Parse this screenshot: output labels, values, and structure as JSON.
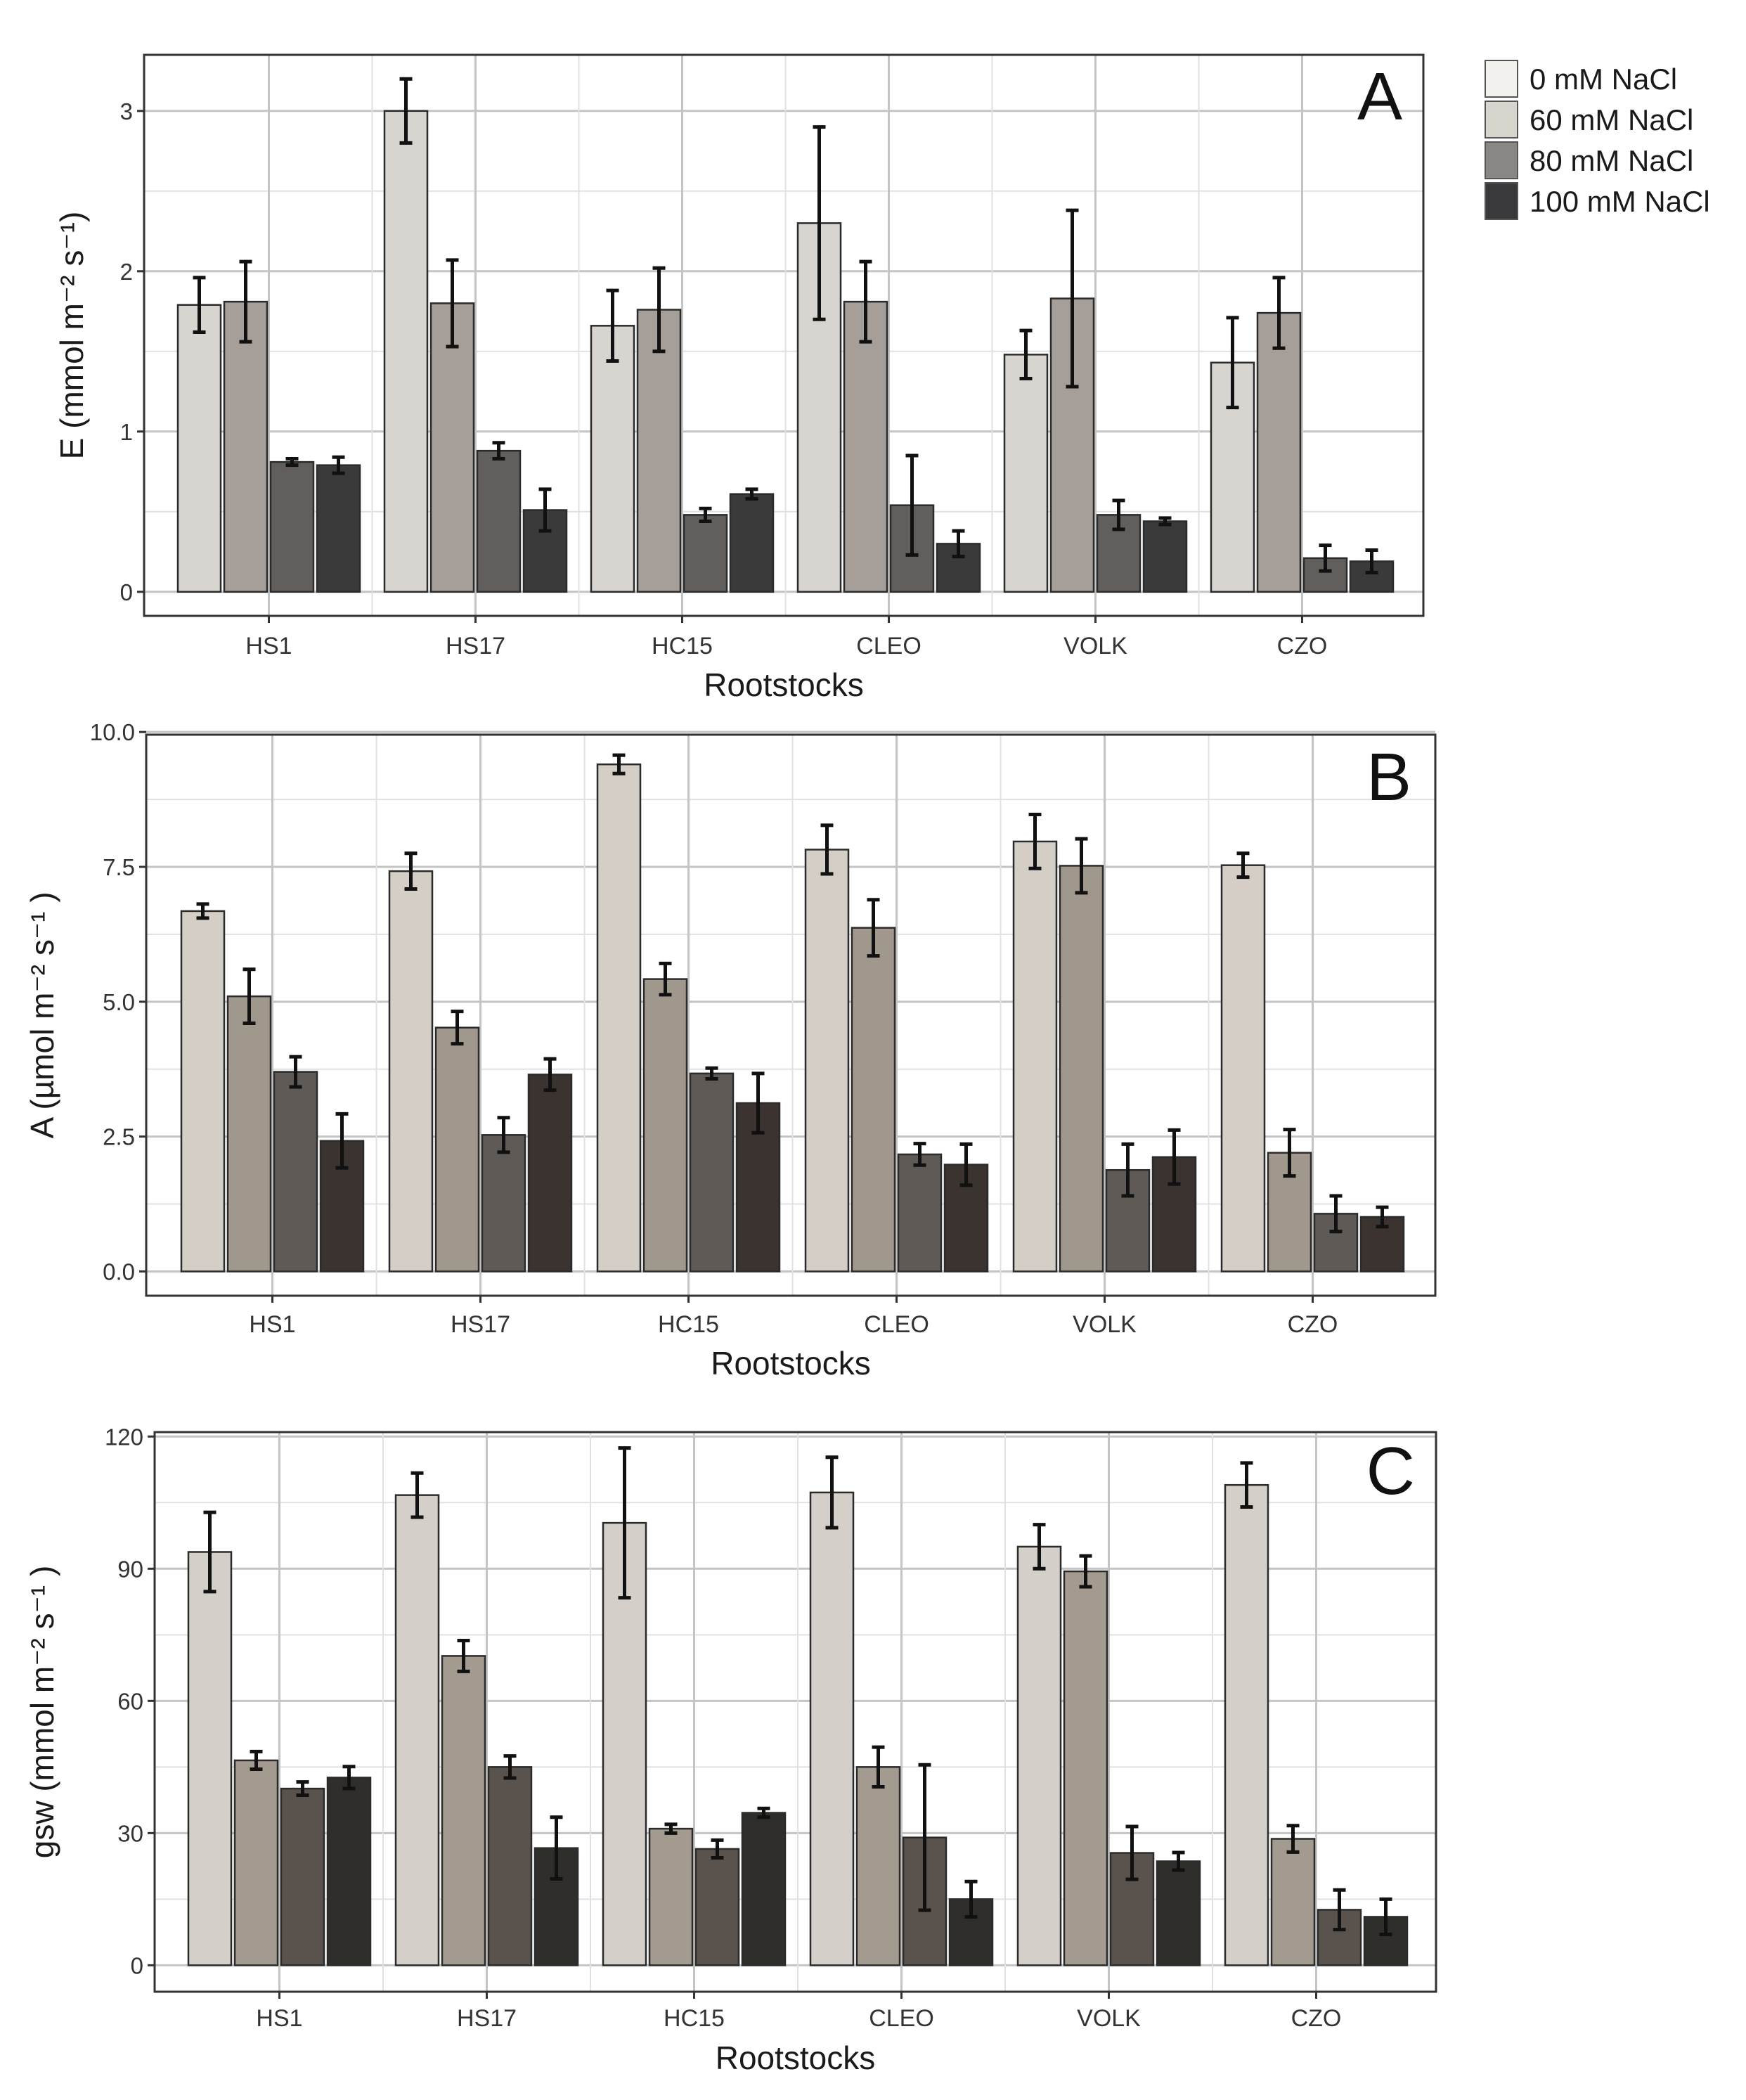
{
  "legend": {
    "items": [
      {
        "label": "0 mM NaCl",
        "color": "#f2f1ee"
      },
      {
        "label": "60 mM NaCl",
        "color": "#d8d5cf"
      },
      {
        "label": "80 mM NaCl",
        "color": "#8a8684"
      },
      {
        "label": "100 mM NaCl",
        "color": "#3a3a3c"
      }
    ]
  },
  "chart_data": [
    {
      "type": "bar",
      "panel_label": "A",
      "xlabel": "Rootstocks",
      "ylabel": "E (mmol m⁻² s⁻¹)",
      "ylim": [
        -0.15,
        3.35
      ],
      "yticks": [
        0,
        1,
        2,
        3
      ],
      "ytick_labels": [
        "0",
        "1",
        "2",
        "3"
      ],
      "categories": [
        "HS1",
        "HS17",
        "HC15",
        "CLEO",
        "VOLK",
        "CZO"
      ],
      "colors": [
        "#d8d5d0",
        "#a69e98",
        "#625e5c",
        "#3a3a3b"
      ],
      "series": [
        {
          "name": "0 mM NaCl",
          "values": [
            1.79,
            3.0,
            1.66,
            2.3,
            1.48,
            1.43
          ],
          "errors": [
            0.17,
            0.2,
            0.22,
            0.6,
            0.15,
            0.28
          ]
        },
        {
          "name": "60 mM NaCl",
          "values": [
            1.81,
            1.8,
            1.76,
            1.81,
            1.83,
            1.74
          ],
          "errors": [
            0.25,
            0.27,
            0.26,
            0.25,
            0.55,
            0.22
          ]
        },
        {
          "name": "80 mM NaCl",
          "values": [
            0.81,
            0.88,
            0.48,
            0.54,
            0.48,
            0.21
          ],
          "errors": [
            0.02,
            0.05,
            0.04,
            0.31,
            0.09,
            0.08
          ]
        },
        {
          "name": "100 mM NaCl",
          "values": [
            0.79,
            0.51,
            0.61,
            0.3,
            0.44,
            0.19
          ],
          "errors": [
            0.05,
            0.13,
            0.03,
            0.08,
            0.02,
            0.07
          ]
        }
      ]
    },
    {
      "type": "bar",
      "panel_label": "B",
      "xlabel": "Rootstocks",
      "ylabel": "A (µmol m⁻² s⁻¹ )",
      "ylim": [
        -0.45,
        9.95
      ],
      "yticks": [
        0,
        2.5,
        5,
        7.5,
        10
      ],
      "ytick_labels": [
        "0.0",
        "2.5",
        "5.0",
        "7.5",
        "10.0"
      ],
      "categories": [
        "HS1",
        "HS17",
        "HC15",
        "CLEO",
        "VOLK",
        "CZO"
      ],
      "colors": [
        "#d4cec6",
        "#a0978d",
        "#5f5a55",
        "#3b3330"
      ],
      "series": [
        {
          "name": "0 mM NaCl",
          "values": [
            6.68,
            7.42,
            9.4,
            7.82,
            7.97,
            7.53
          ],
          "errors": [
            0.13,
            0.33,
            0.17,
            0.45,
            0.5,
            0.22
          ]
        },
        {
          "name": "60 mM NaCl",
          "values": [
            5.1,
            4.52,
            5.42,
            6.37,
            7.52,
            2.2
          ],
          "errors": [
            0.5,
            0.3,
            0.29,
            0.52,
            0.5,
            0.43
          ]
        },
        {
          "name": "80 mM NaCl",
          "values": [
            3.7,
            2.53,
            3.67,
            2.17,
            1.88,
            1.07
          ],
          "errors": [
            0.28,
            0.32,
            0.1,
            0.2,
            0.48,
            0.33
          ]
        },
        {
          "name": "100 mM NaCl",
          "values": [
            2.42,
            3.65,
            3.12,
            1.98,
            2.12,
            1.01
          ],
          "errors": [
            0.5,
            0.29,
            0.55,
            0.38,
            0.5,
            0.18
          ]
        }
      ]
    },
    {
      "type": "bar",
      "panel_label": "C",
      "xlabel": "Rootstocks",
      "ylabel": "gsw (mmol m⁻² s⁻¹ )",
      "ylim": [
        -6,
        121
      ],
      "yticks": [
        0,
        30,
        60,
        90,
        120
      ],
      "ytick_labels": [
        "0",
        "30",
        "60",
        "90",
        "120"
      ],
      "categories": [
        "HS1",
        "HS17",
        "HC15",
        "CLEO",
        "VOLK",
        "CZO"
      ],
      "colors": [
        "#d5cfc9",
        "#a39a90",
        "#5a534d",
        "#2f2e2b"
      ],
      "series": [
        {
          "name": "0 mM NaCl",
          "values": [
            93.8,
            106.7,
            100.4,
            107.3,
            95.0,
            109.0
          ],
          "errors": [
            9.0,
            5.0,
            17.0,
            8.0,
            5.0,
            5.0
          ]
        },
        {
          "name": "60 mM NaCl",
          "values": [
            46.5,
            70.2,
            31.0,
            45.0,
            89.4,
            28.7
          ],
          "errors": [
            2.0,
            3.5,
            1.0,
            4.5,
            3.5,
            3.0
          ]
        },
        {
          "name": "80 mM NaCl",
          "values": [
            40.1,
            45.0,
            26.4,
            29.0,
            25.5,
            12.6
          ],
          "errors": [
            1.5,
            2.5,
            2.0,
            16.5,
            6.0,
            4.5
          ]
        },
        {
          "name": "100 mM NaCl",
          "values": [
            42.6,
            26.6,
            34.6,
            15.0,
            23.6,
            11.0
          ],
          "errors": [
            2.5,
            7.0,
            1.0,
            4.0,
            2.0,
            4.0
          ]
        }
      ]
    }
  ]
}
